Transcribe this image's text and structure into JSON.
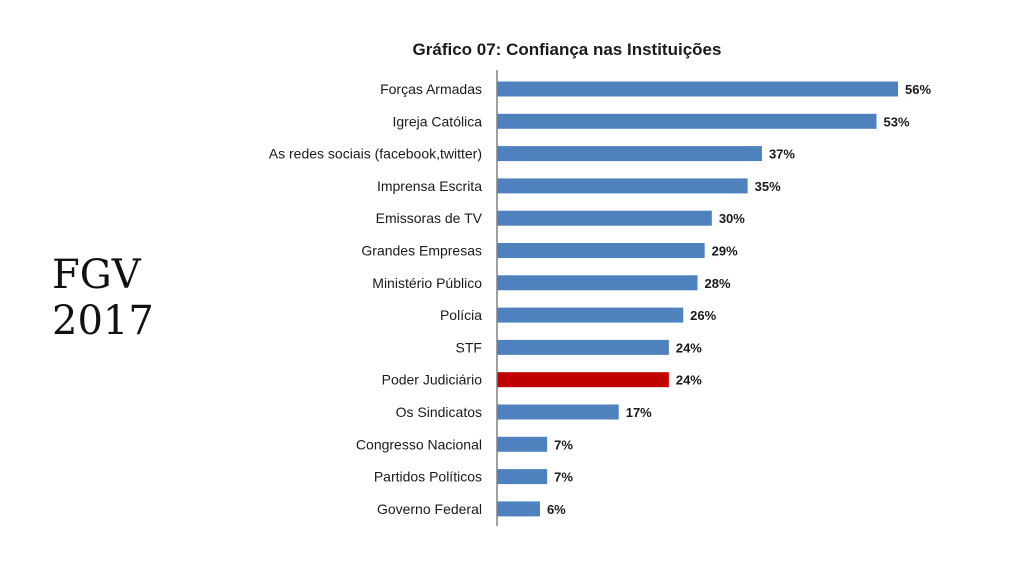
{
  "side_label": {
    "line1": "FGV",
    "line2": "2017"
  },
  "chart_data": {
    "type": "bar",
    "orientation": "horizontal",
    "title": "Gráfico 07: Confiança nas Instituições",
    "categories": [
      "Forças Armadas",
      "Igreja Católica",
      "As redes sociais (facebook,twitter)",
      "Imprensa Escrita",
      "Emissoras de TV",
      "Grandes Empresas",
      "Ministério Público",
      "Polícia",
      "STF",
      "Poder Judiciário",
      "Os Sindicatos",
      "Congresso Nacional",
      "Partidos Políticos",
      "Governo Federal"
    ],
    "values": [
      56,
      53,
      37,
      35,
      30,
      29,
      28,
      26,
      24,
      24,
      17,
      7,
      7,
      6
    ],
    "value_labels": [
      "56%",
      "53%",
      "37%",
      "35%",
      "30%",
      "29%",
      "28%",
      "26%",
      "24%",
      "24%",
      "17%",
      "7%",
      "7%",
      "6%"
    ],
    "highlight_category": "Poder Judiciário",
    "colors": {
      "bar": "#4f81bd",
      "highlight": "#c00000",
      "axis": "#808080"
    },
    "xlim": [
      0,
      56
    ],
    "grid": false,
    "legend": "none"
  }
}
